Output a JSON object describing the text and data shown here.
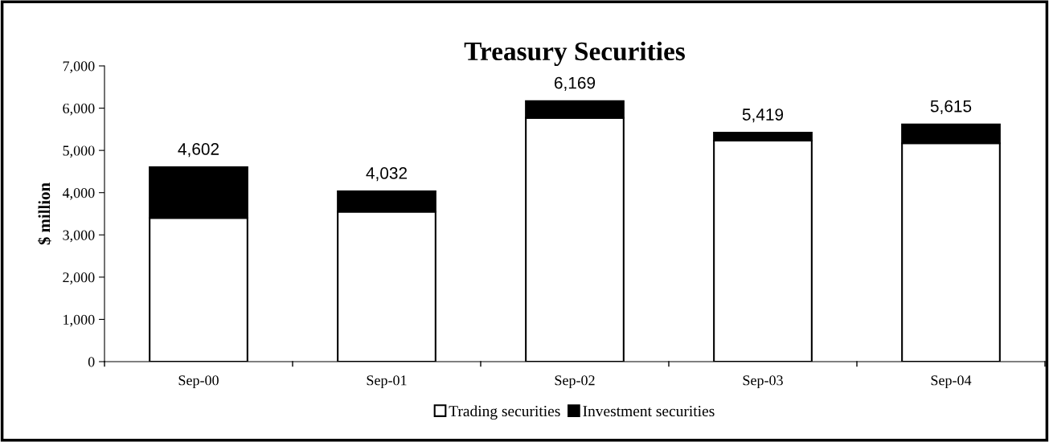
{
  "chart_data": {
    "type": "bar",
    "title": "Treasury Securities",
    "ylabel": "$ million",
    "categories": [
      "Sep-00",
      "Sep-01",
      "Sep-02",
      "Sep-03",
      "Sep-04"
    ],
    "stacked": true,
    "series": [
      {
        "name": "Trading securities",
        "color": "#ffffff",
        "values": [
          3400,
          3550,
          5770,
          5230,
          5170
        ]
      },
      {
        "name": "Investment securities",
        "color": "#000000",
        "values": [
          1202,
          482,
          399,
          189,
          445
        ]
      }
    ],
    "totals": [
      "4,602",
      "4,032",
      "6,169",
      "5,419",
      "5,615"
    ],
    "ylim": [
      0,
      7000
    ],
    "yticks": [
      {
        "value": 0,
        "label": "0"
      },
      {
        "value": 1000,
        "label": "1,000"
      },
      {
        "value": 2000,
        "label": "2,000"
      },
      {
        "value": 3000,
        "label": "3,000"
      },
      {
        "value": 4000,
        "label": "4,000"
      },
      {
        "value": 5000,
        "label": "5,000"
      },
      {
        "value": 6000,
        "label": "6,000"
      },
      {
        "value": 7000,
        "label": "7,000"
      }
    ],
    "grid": false,
    "legend": "bottom"
  }
}
